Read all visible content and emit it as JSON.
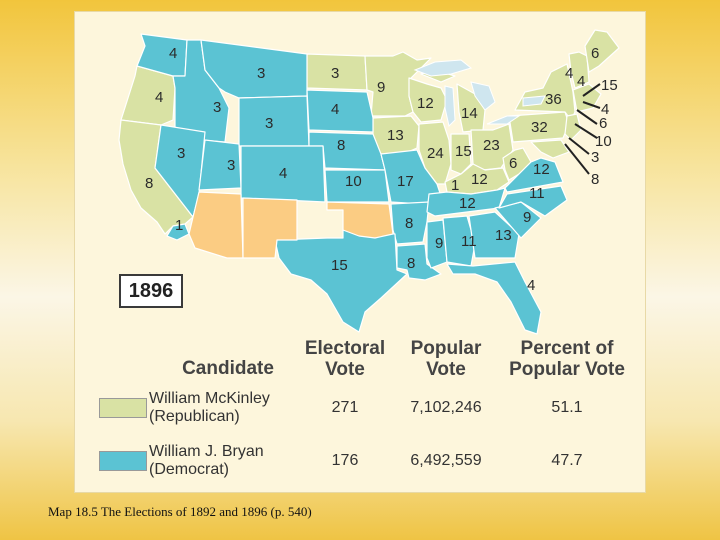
{
  "map": {
    "year_label": "1896",
    "colors": {
      "republican": "#d9e2a4",
      "democrat": "#5bc3d3",
      "territory": "#fbcc83"
    },
    "electoral_labels": [
      {
        "state": "Washington",
        "ev": "4"
      },
      {
        "state": "Oregon",
        "ev": "4"
      },
      {
        "state": "California (Republican)",
        "ev": "8"
      },
      {
        "state": "California (Democrat)",
        "ev": "1"
      },
      {
        "state": "Idaho",
        "ev": "3"
      },
      {
        "state": "Montana",
        "ev": "3"
      },
      {
        "state": "Wyoming",
        "ev": "3"
      },
      {
        "state": "Nevada",
        "ev": "3"
      },
      {
        "state": "Utah",
        "ev": "3"
      },
      {
        "state": "Colorado",
        "ev": "4"
      },
      {
        "state": "North Dakota",
        "ev": "3"
      },
      {
        "state": "South Dakota",
        "ev": "4"
      },
      {
        "state": "Nebraska",
        "ev": "8"
      },
      {
        "state": "Kansas",
        "ev": "10"
      },
      {
        "state": "Texas",
        "ev": "15"
      },
      {
        "state": "Minnesota",
        "ev": "9"
      },
      {
        "state": "Iowa",
        "ev": "13"
      },
      {
        "state": "Missouri",
        "ev": "17"
      },
      {
        "state": "Arkansas",
        "ev": "8"
      },
      {
        "state": "Louisiana",
        "ev": "8"
      },
      {
        "state": "Wisconsin",
        "ev": "12"
      },
      {
        "state": "Illinois",
        "ev": "24"
      },
      {
        "state": "Michigan",
        "ev": "14"
      },
      {
        "state": "Indiana",
        "ev": "15"
      },
      {
        "state": "Ohio",
        "ev": "23"
      },
      {
        "state": "Kentucky (Republican)",
        "ev": "12"
      },
      {
        "state": "Kentucky (Democrat)",
        "ev": "1"
      },
      {
        "state": "Tennessee",
        "ev": "12"
      },
      {
        "state": "Mississippi",
        "ev": "9"
      },
      {
        "state": "Alabama",
        "ev": "11"
      },
      {
        "state": "Georgia",
        "ev": "13"
      },
      {
        "state": "Florida",
        "ev": "4"
      },
      {
        "state": "South Carolina",
        "ev": "9"
      },
      {
        "state": "North Carolina",
        "ev": "11"
      },
      {
        "state": "Virginia",
        "ev": "12"
      },
      {
        "state": "West Virginia",
        "ev": "6"
      },
      {
        "state": "Pennsylvania",
        "ev": "32"
      },
      {
        "state": "New York",
        "ev": "36"
      },
      {
        "state": "Vermont",
        "ev": "4"
      },
      {
        "state": "New Hampshire",
        "ev": "4"
      },
      {
        "state": "Maine",
        "ev": "6"
      },
      {
        "state": "Massachusetts",
        "ev": "15"
      },
      {
        "state": "Rhode Island",
        "ev": "4"
      },
      {
        "state": "Connecticut",
        "ev": "6"
      },
      {
        "state": "New Jersey",
        "ev": "10"
      },
      {
        "state": "Delaware",
        "ev": "3"
      },
      {
        "state": "Maryland",
        "ev": "8"
      }
    ]
  },
  "table": {
    "headers": {
      "candidate": "Candidate",
      "electoral_l1": "Electoral",
      "electoral_l2": "Vote",
      "popular_l1": "Popular",
      "popular_l2": "Vote",
      "percent_l1": "Percent of",
      "percent_l2": "Popular Vote"
    },
    "rows": [
      {
        "name_l1": "William McKinley",
        "name_l2": "(Republican)",
        "electoral": "271",
        "popular": "7,102,246",
        "percent": "51.1",
        "party": "republican"
      },
      {
        "name_l1": "William J. Bryan",
        "name_l2": "(Democrat)",
        "electoral": "176",
        "popular": "6,492,559",
        "percent": "47.7",
        "party": "democrat"
      }
    ]
  },
  "caption": "Map 18.5 The Elections of 1892 and 1896 (p. 540)"
}
